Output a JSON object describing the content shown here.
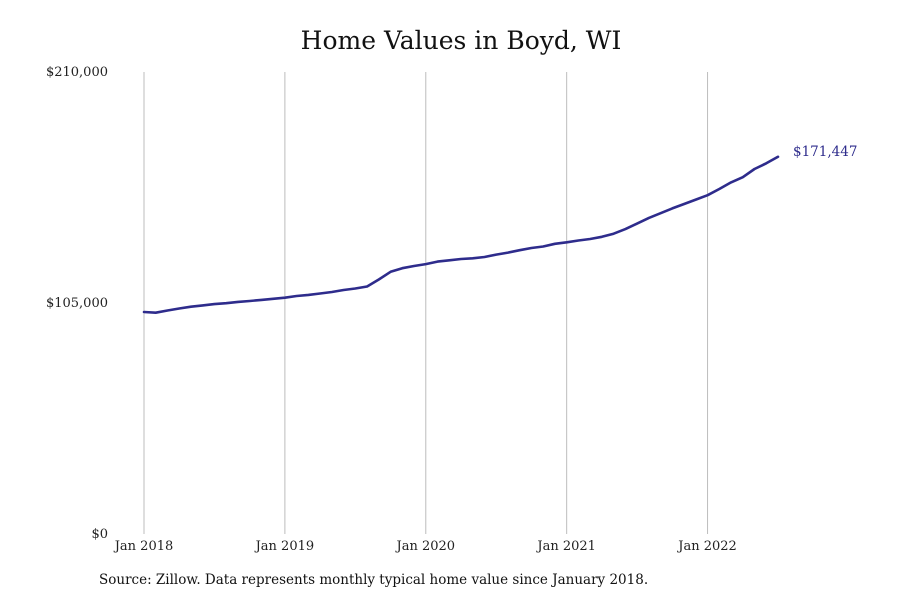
{
  "chart_data": {
    "type": "line",
    "title": "Home Values in Boyd, WI",
    "y_tick_labels": [
      "$0",
      "$105,000",
      "$210,000"
    ],
    "y_ticks": [
      0,
      105000,
      210000
    ],
    "ylim": [
      0,
      210000
    ],
    "x_tick_labels": [
      "Jan 2018",
      "Jan 2019",
      "Jan 2020",
      "Jan 2021",
      "Jan 2022"
    ],
    "x_ticks": [
      "2018-01",
      "2019-01",
      "2020-01",
      "2021-01",
      "2022-01"
    ],
    "xlim": [
      "2018-01",
      "2022-07"
    ],
    "grid": "vertical lines at year ticks",
    "line_color": "#2e2c8c",
    "end_label": "$171,447",
    "series": [
      {
        "x": [
          "2018-01",
          "2018-02",
          "2018-03",
          "2018-04",
          "2018-05",
          "2018-06",
          "2018-07",
          "2018-08",
          "2018-09",
          "2018-10",
          "2018-11",
          "2018-12",
          "2019-01",
          "2019-02",
          "2019-03",
          "2019-04",
          "2019-05",
          "2019-06",
          "2019-07",
          "2019-08",
          "2019-09",
          "2019-10",
          "2019-11",
          "2019-12",
          "2020-01",
          "2020-02",
          "2020-03",
          "2020-04",
          "2020-05",
          "2020-06",
          "2020-07",
          "2020-08",
          "2020-09",
          "2020-10",
          "2020-11",
          "2020-12",
          "2021-01",
          "2021-02",
          "2021-03",
          "2021-04",
          "2021-05",
          "2021-06",
          "2021-07",
          "2021-08",
          "2021-09",
          "2021-10",
          "2021-11",
          "2021-12",
          "2022-01",
          "2022-02",
          "2022-03",
          "2022-04",
          "2022-05",
          "2022-06",
          "2022-07"
        ],
        "values": [
          100900,
          100600,
          101600,
          102500,
          103300,
          103900,
          104500,
          104900,
          105500,
          105900,
          106400,
          106900,
          107400,
          108200,
          108700,
          109300,
          110000,
          110900,
          111600,
          112500,
          115700,
          119200,
          120800,
          121800,
          122700,
          123800,
          124400,
          125000,
          125300,
          125900,
          127000,
          127900,
          129000,
          130000,
          130700,
          131900,
          132600,
          133400,
          134100,
          135100,
          136500,
          138600,
          141100,
          143700,
          145800,
          148000,
          150000,
          152000,
          154000,
          156800,
          159800,
          162200,
          165900,
          168500,
          171447
        ]
      }
    ]
  },
  "source_note": "Source: Zillow. Data represents monthly typical home value since January 2018."
}
